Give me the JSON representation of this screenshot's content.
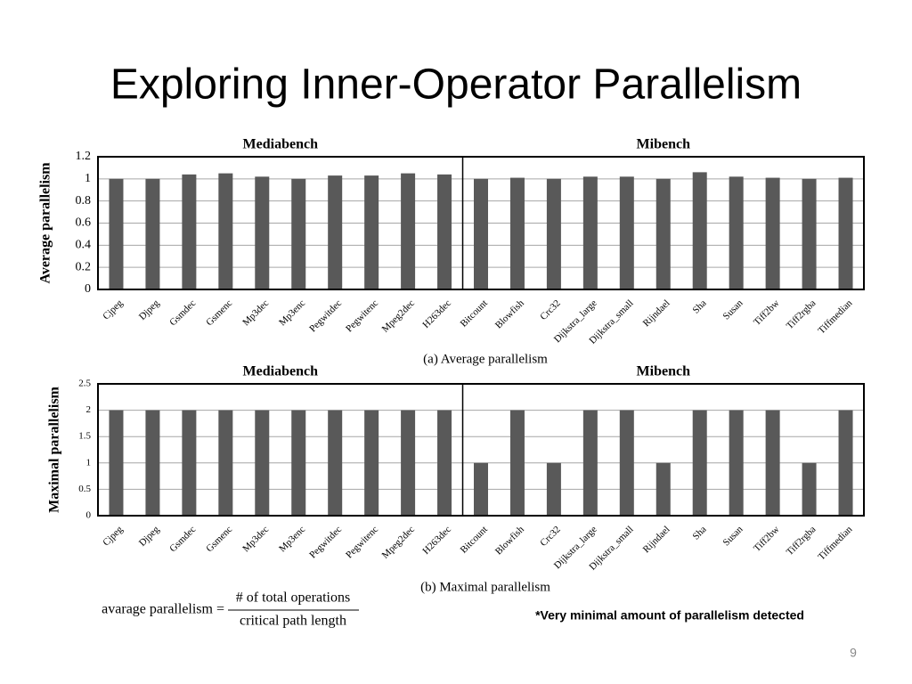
{
  "slide": {
    "title": "Exploring Inner-Operator Parallelism",
    "formula": {
      "lhs": "avarage parallelism =",
      "numerator": "# of total operations",
      "denominator": "critical path length"
    },
    "note": "*Very minimal amount of parallelism detected",
    "page_number": "9"
  },
  "chart_data": [
    {
      "type": "bar",
      "y_label": "Average parallelism",
      "caption": "(a) Average parallelism",
      "color": "#595959",
      "grid": true,
      "ylim": [
        0,
        1.2
      ],
      "yticks": [
        0,
        0.2,
        0.4,
        0.6,
        0.8,
        1,
        1.2
      ],
      "groups": [
        {
          "name": "Mediabench",
          "categories": [
            "Cjpeg",
            "Djpeg",
            "Gsmdec",
            "Gsmenc",
            "Mp3dec",
            "Mp3enc",
            "Pegwitdec",
            "Pegwitenc",
            "Mpeg2dec",
            "H263dec"
          ],
          "values": [
            1,
            1,
            1.04,
            1.05,
            1.02,
            1,
            1.03,
            1.03,
            1.05,
            1.04
          ]
        },
        {
          "name": "Mibench",
          "categories": [
            "Bitcount",
            "Blowfish",
            "Crc32",
            "Dijkstra_large",
            "Dijkstra_small",
            "Rijndael",
            "Sha",
            "Susan",
            "Tiff2bw",
            "Tiff2rgba",
            "Tiffmedian"
          ],
          "values": [
            1,
            1.01,
            1,
            1.02,
            1.02,
            1,
            1.06,
            1.02,
            1.01,
            1,
            1.01
          ]
        }
      ]
    },
    {
      "type": "bar",
      "y_label": "Maximal parallelism",
      "caption": "(b) Maximal parallelism",
      "color": "#595959",
      "grid": true,
      "ylim": [
        0,
        2.5
      ],
      "yticks": [
        0,
        0.5,
        1,
        1.5,
        2,
        2.5
      ],
      "groups": [
        {
          "name": "Mediabench",
          "categories": [
            "Cjpeg",
            "Djpeg",
            "Gsmdec",
            "Gsmenc",
            "Mp3dec",
            "Mp3enc",
            "Pegwitdec",
            "Pegwitenc",
            "Mpeg2dec",
            "H263dec"
          ],
          "values": [
            2,
            2,
            2,
            2,
            2,
            2,
            2,
            2,
            2,
            2
          ]
        },
        {
          "name": "Mibench",
          "categories": [
            "Bitcount",
            "Blowfish",
            "Crc32",
            "Dijkstra_large",
            "Dijkstra_small",
            "Rijndael",
            "Sha",
            "Susan",
            "Tiff2bw",
            "Tiff2rgba",
            "Tiffmedian"
          ],
          "values": [
            1,
            2,
            1,
            2,
            2,
            1,
            2,
            2,
            2,
            1,
            2
          ]
        }
      ]
    }
  ]
}
